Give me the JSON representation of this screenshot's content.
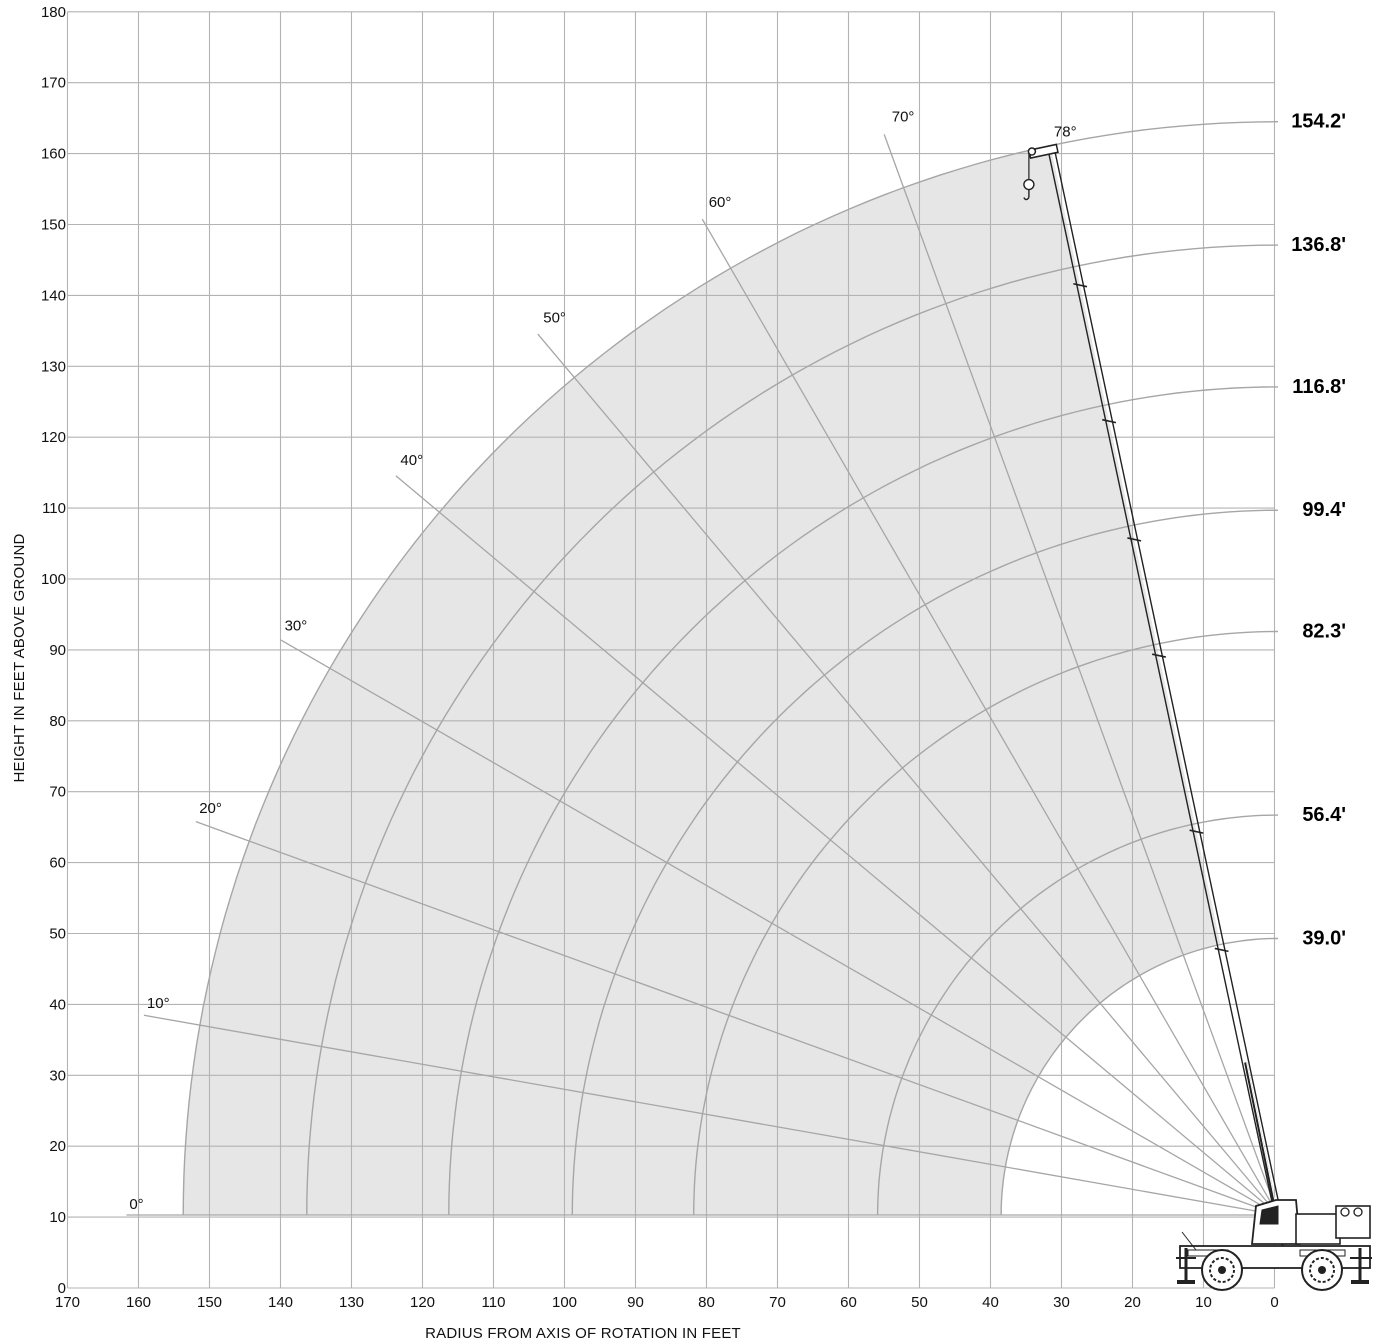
{
  "chart_data": {
    "type": "line",
    "title": "",
    "xlabel": "RADIUS FROM AXIS OF ROTATION IN FEET",
    "ylabel": "HEIGHT IN FEET ABOVE GROUND",
    "xlim": [
      170,
      -5
    ],
    "ylim": [
      0,
      180
    ],
    "x_ticks": [
      170,
      160,
      150,
      140,
      130,
      120,
      110,
      100,
      90,
      80,
      70,
      60,
      50,
      40,
      30,
      20,
      10,
      0
    ],
    "y_ticks": [
      0,
      10,
      20,
      30,
      40,
      50,
      60,
      70,
      80,
      90,
      100,
      110,
      120,
      130,
      140,
      150,
      160,
      170,
      180
    ],
    "grid": true,
    "pivot": {
      "x": -0.5,
      "y": 10.3
    },
    "boom_lengths": [
      {
        "label": "154.2'",
        "length": 154.2
      },
      {
        "label": "136.8'",
        "length": 136.8
      },
      {
        "label": "116.8'",
        "length": 116.8
      },
      {
        "label": "99.4'",
        "length": 99.4
      },
      {
        "label": "82.3'",
        "length": 82.3
      },
      {
        "label": "56.4'",
        "length": 56.4
      },
      {
        "label": "39.0'",
        "length": 39.0
      }
    ],
    "boom_angles": [
      {
        "label": "0°",
        "angle": 0
      },
      {
        "label": "10°",
        "angle": 10
      },
      {
        "label": "20°",
        "angle": 20
      },
      {
        "label": "30°",
        "angle": 30
      },
      {
        "label": "40°",
        "angle": 40
      },
      {
        "label": "50°",
        "angle": 50
      },
      {
        "label": "60°",
        "angle": 60
      },
      {
        "label": "70°",
        "angle": 70
      },
      {
        "label": "78°",
        "angle": 78
      }
    ],
    "max_angle": 78
  },
  "colors": {
    "background": "#ffffff",
    "grid": "#b3b3b3",
    "envelope_fill": "#e6e6e6",
    "arc": "#a6a6a6",
    "text": "#111111",
    "boom": "#222222"
  },
  "icons": {
    "crane": "rough-terrain-crane-icon"
  }
}
